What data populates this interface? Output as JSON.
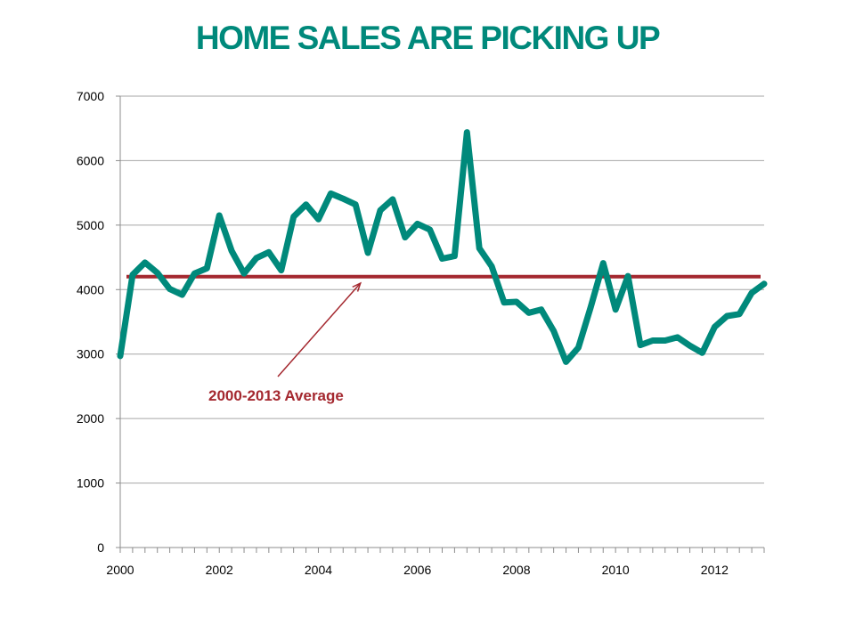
{
  "title": "HOME SALES ARE PICKING UP",
  "colors": {
    "title": "#00897b",
    "series": "#00897b",
    "average": "#a4282f",
    "grid": "#a6a6a6",
    "axis": "#8c8c8c"
  },
  "chart_data": {
    "type": "line",
    "title": "HOME SALES ARE PICKING UP",
    "xlabel": "",
    "ylabel": "",
    "xlim": [
      2000,
      2013
    ],
    "ylim": [
      0,
      7000
    ],
    "x_ticks": [
      "2000",
      "2002",
      "2004",
      "2006",
      "2008",
      "2010",
      "2012"
    ],
    "y_ticks": [
      "0",
      "1000",
      "2000",
      "3000",
      "4000",
      "5000",
      "6000",
      "7000"
    ],
    "grid": true,
    "legend": "none",
    "series": [
      {
        "x": [
          2000.0,
          2000.25,
          2000.5,
          2000.75,
          2001.0,
          2001.25,
          2001.5,
          2001.75,
          2002.0,
          2002.25,
          2002.5,
          2002.75,
          2003.0,
          2003.25,
          2003.5,
          2003.75,
          2004.0,
          2004.25,
          2004.5,
          2004.75,
          2005.0,
          2005.25,
          2005.5,
          2005.75,
          2006.0,
          2006.25,
          2006.5,
          2006.75,
          2007.0,
          2007.25,
          2007.5,
          2007.75,
          2008.0,
          2008.25,
          2008.5,
          2008.75,
          2009.0,
          2009.25,
          2009.5,
          2009.75,
          2010.0,
          2010.25,
          2010.5,
          2010.75,
          2011.0,
          2011.25,
          2011.5,
          2011.75,
          2012.0,
          2012.25,
          2012.5,
          2012.75,
          2013.0
        ],
        "values": [
          2970,
          4230,
          4420,
          4260,
          4010,
          3920,
          4250,
          4330,
          5150,
          4600,
          4250,
          4490,
          4580,
          4300,
          5130,
          5320,
          5090,
          5490,
          5410,
          5320,
          4570,
          5230,
          5400,
          4810,
          5020,
          4930,
          4480,
          4520,
          6440,
          4640,
          4360,
          3800,
          3810,
          3640,
          3690,
          3360,
          2880,
          3100,
          3730,
          4410,
          3690,
          4210,
          3140,
          3210,
          3210,
          3260,
          3130,
          3020,
          3420,
          3590,
          3620,
          3950,
          4090
        ]
      }
    ],
    "reference_line": {
      "value": 4200,
      "from": 2000,
      "to": 2013
    },
    "annotation": {
      "text": "2000-2013 Average",
      "arrow_to": [
        2004.85,
        4100
      ]
    }
  }
}
